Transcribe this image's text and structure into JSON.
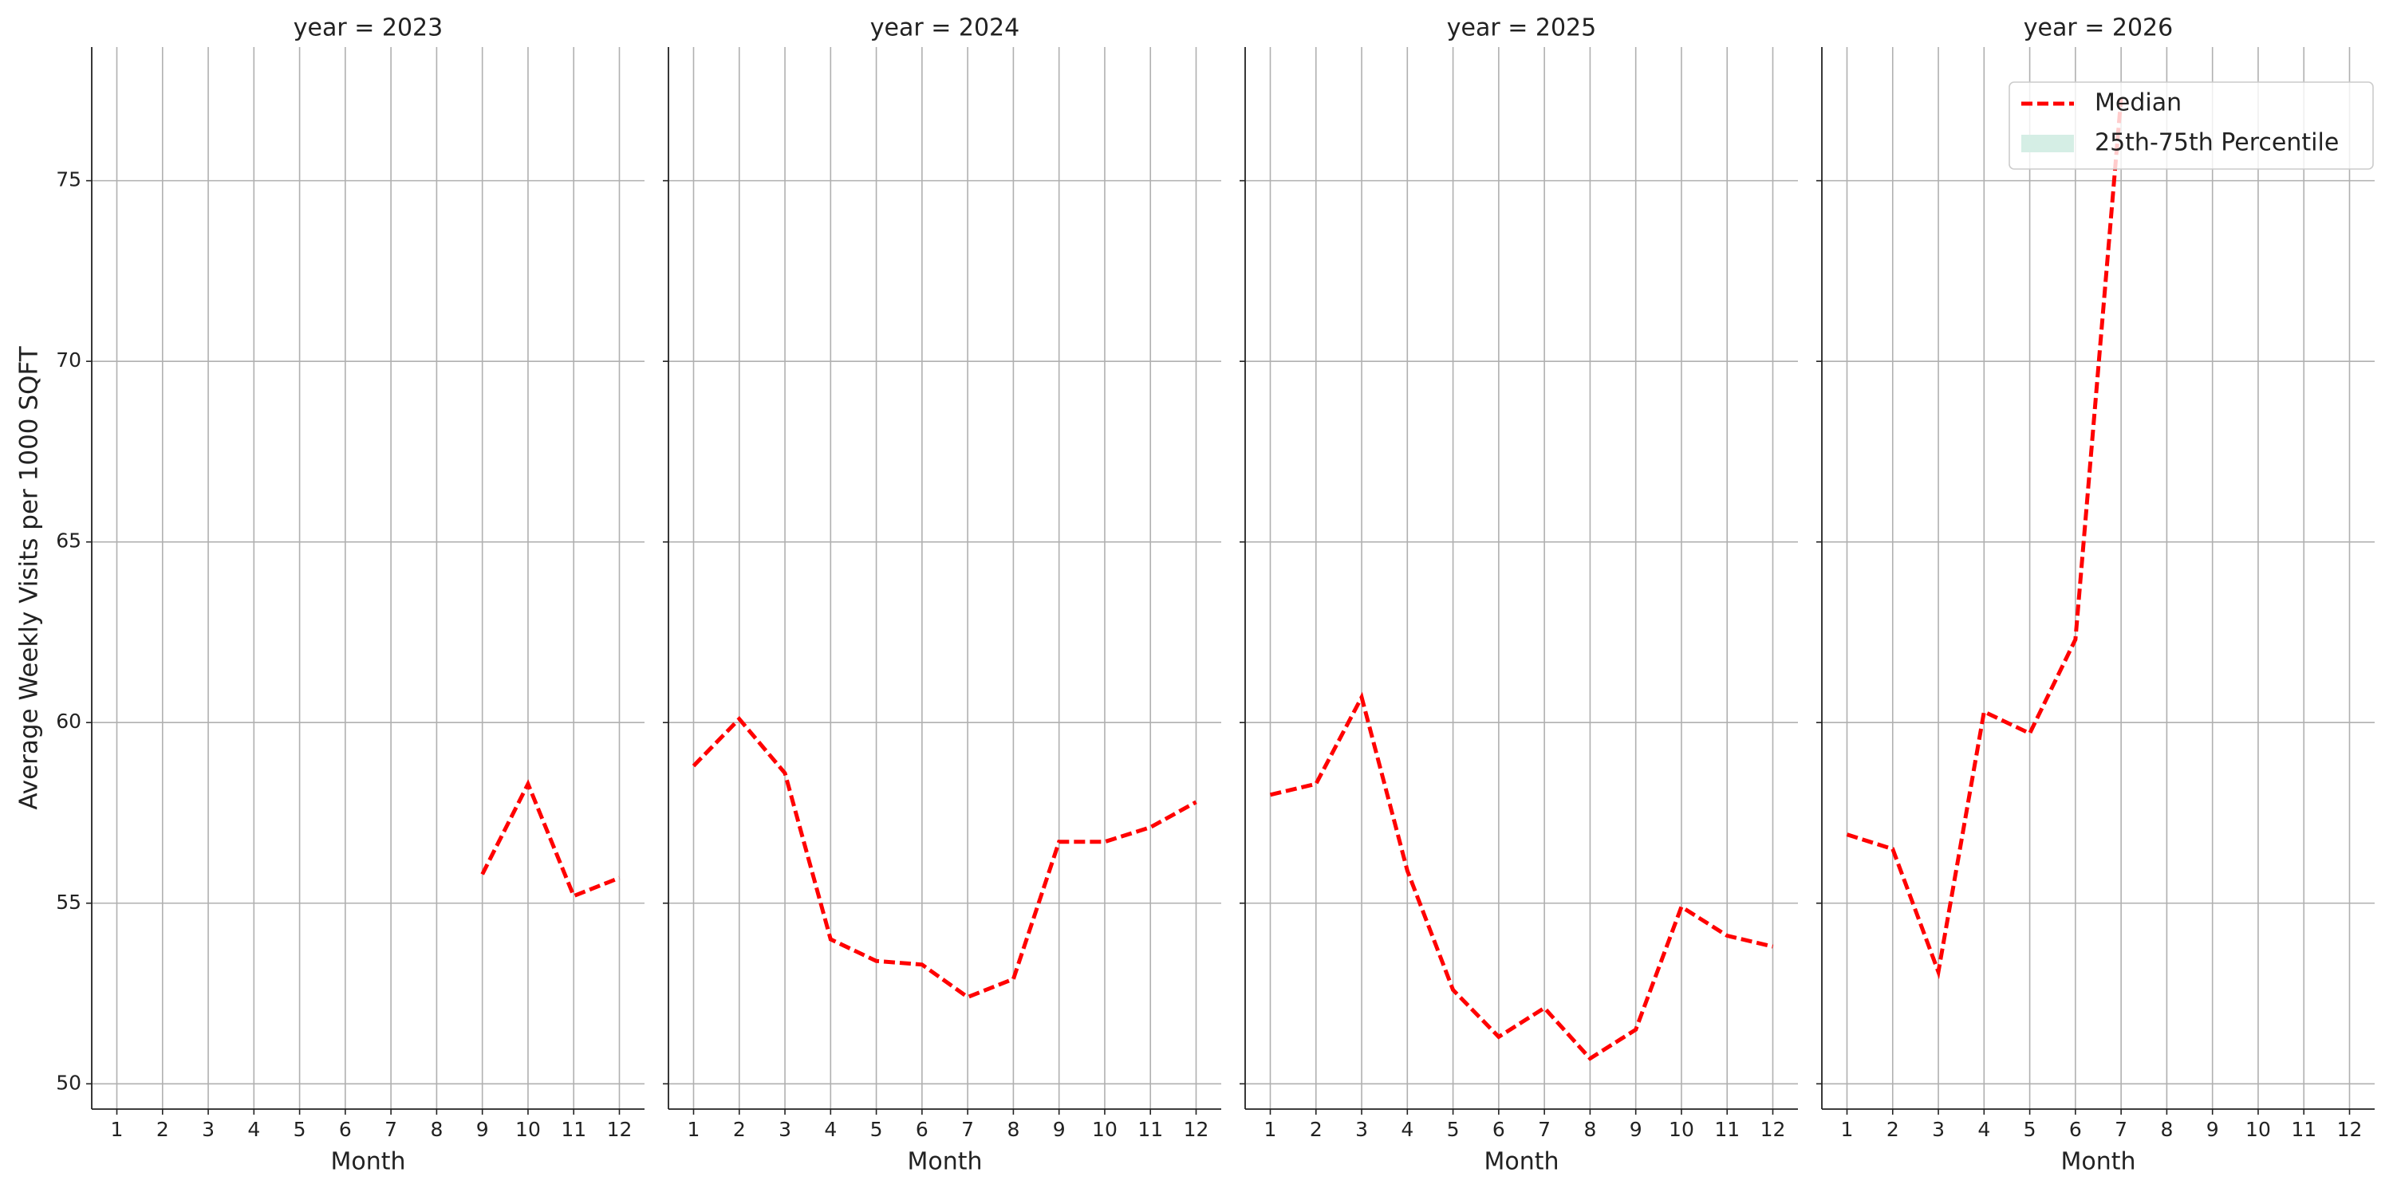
{
  "chart_data": [
    {
      "type": "line",
      "title": "year = 2023",
      "y_label": "Average Weekly Visits per 1000 SQFT",
      "x_label": "Month",
      "x": [
        1,
        2,
        3,
        4,
        5,
        6,
        7,
        8,
        9,
        10,
        11,
        12
      ],
      "xlim": [
        0.45,
        12.55
      ],
      "xticks": [
        1,
        2,
        3,
        4,
        5,
        6,
        7,
        8,
        9,
        10,
        11,
        12
      ],
      "ylim": [
        49.3,
        78.7
      ],
      "yticks": [
        50,
        55,
        60,
        65,
        70,
        75
      ],
      "grid": true,
      "series": [
        {
          "color": "#ff0000",
          "values": [
            null,
            null,
            null,
            null,
            null,
            null,
            null,
            null,
            55.8,
            58.3,
            55.2,
            55.7
          ]
        }
      ]
    },
    {
      "type": "line",
      "title": "year = 2024",
      "x_label": "Month",
      "x": [
        1,
        2,
        3,
        4,
        5,
        6,
        7,
        8,
        9,
        10,
        11,
        12
      ],
      "xlim": [
        0.45,
        12.55
      ],
      "xticks": [
        1,
        2,
        3,
        4,
        5,
        6,
        7,
        8,
        9,
        10,
        11,
        12
      ],
      "ylim": [
        49.3,
        78.7
      ],
      "yticks": [
        50,
        55,
        60,
        65,
        70,
        75
      ],
      "grid": true,
      "series": [
        {
          "color": "#ff0000",
          "values": [
            58.8,
            60.1,
            58.6,
            54.0,
            53.4,
            53.3,
            52.4,
            52.9,
            56.7,
            56.7,
            57.1,
            57.8
          ]
        }
      ]
    },
    {
      "type": "line",
      "title": "year = 2025",
      "x_label": "Month",
      "x": [
        1,
        2,
        3,
        4,
        5,
        6,
        7,
        8,
        9,
        10,
        11,
        12
      ],
      "xlim": [
        0.45,
        12.55
      ],
      "xticks": [
        1,
        2,
        3,
        4,
        5,
        6,
        7,
        8,
        9,
        10,
        11,
        12
      ],
      "ylim": [
        49.3,
        78.7
      ],
      "yticks": [
        50,
        55,
        60,
        65,
        70,
        75
      ],
      "grid": true,
      "series": [
        {
          "color": "#ff0000",
          "values": [
            58.0,
            58.3,
            60.7,
            55.9,
            52.6,
            51.3,
            52.1,
            50.7,
            51.5,
            54.9,
            54.1,
            53.8
          ]
        }
      ]
    },
    {
      "type": "line",
      "title": "year = 2026",
      "x_label": "Month",
      "x": [
        1,
        2,
        3,
        4,
        5,
        6,
        7,
        8,
        9,
        10,
        11,
        12
      ],
      "xlim": [
        0.45,
        12.55
      ],
      "xticks": [
        1,
        2,
        3,
        4,
        5,
        6,
        7,
        8,
        9,
        10,
        11,
        12
      ],
      "ylim": [
        49.3,
        78.7
      ],
      "yticks": [
        50,
        55,
        60,
        65,
        70,
        75
      ],
      "grid": true,
      "legend": "upper right",
      "series": [
        {
          "name": "Median",
          "color": "#ff0000",
          "values": [
            56.9,
            56.5,
            53.1,
            60.3,
            59.7,
            62.3,
            77.3,
            null,
            null,
            null,
            null,
            null
          ]
        },
        {
          "name": "25th-75th Percentile",
          "color": "#d5eee5",
          "style": "band"
        }
      ]
    }
  ]
}
